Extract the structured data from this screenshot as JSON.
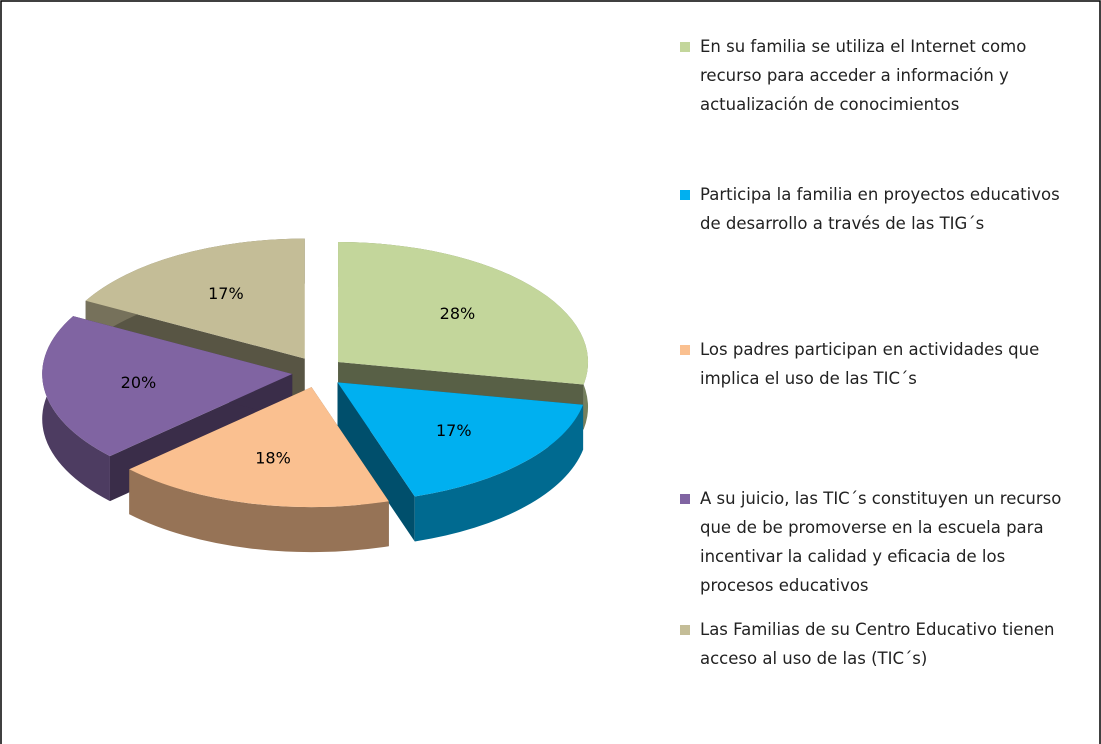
{
  "chart_data": {
    "type": "pie",
    "categories": [
      "En su familia se utiliza  el Internet como recurso para acceder a información y actualización  de conocimientos",
      "Participa la familia  en proyectos educativos de desarrollo a través de las TIG´s",
      "Los padres participan en actividades que implica el uso de las TIC´s",
      "A su juicio, las TIC´s constituyen un recurso que de be promoverse en la escuela para incentivar la calidad  y eficacia de los procesos educativos",
      "Las Familias  de su Centro Educativo tienen acceso al uso de las (TIC´s)"
    ],
    "values": [
      28,
      17,
      18,
      20,
      17
    ],
    "value_labels": [
      "28%",
      "17%",
      "18%",
      "20%",
      "17%"
    ],
    "colors": [
      "#c3d69b",
      "#00b0f0",
      "#fac090",
      "#8064a2",
      "#c4bd97"
    ],
    "legend": "right"
  }
}
